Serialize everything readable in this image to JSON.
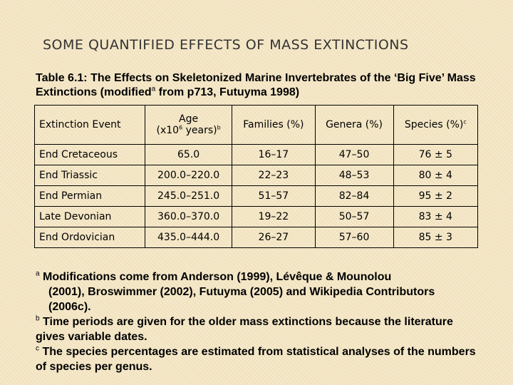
{
  "slide": {
    "title": "SOME QUANTIFIED EFFECTS OF MASS EXTINCTIONS"
  },
  "caption": {
    "part1": "Table 6.1: The Effects on Skeletonized Marine Invertebrates of the ‘Big Five’ Mass Extinctions (modified",
    "sup": "a",
    "part2": " from p713, Futuyma 1998)"
  },
  "table": {
    "headers": {
      "event": "Extinction Event",
      "age_line1": "Age",
      "age_line2_pre": "(x10",
      "age_line2_exp": "6",
      "age_line2_post": " years)",
      "age_sup": "b",
      "families": "Families (%)",
      "genera": "Genera (%)",
      "species": "Species (%)",
      "species_sup": "c"
    },
    "rows": [
      {
        "event": "End Cretaceous",
        "age": "65.0",
        "families": "16–17",
        "genera": "47–50",
        "species": "76 ± 5"
      },
      {
        "event": "End Triassic",
        "age": "200.0–220.0",
        "families": "22–23",
        "genera": "48–53",
        "species": "80 ± 4"
      },
      {
        "event": "End Permian",
        "age": "245.0–251.0",
        "families": "51–57",
        "genera": "82–84",
        "species": "95 ± 2"
      },
      {
        "event": "Late Devonian",
        "age": "360.0–370.0",
        "families": "19–22",
        "genera": "50–57",
        "species": "83 ± 4"
      },
      {
        "event": "End Ordovician",
        "age": "435.0–444.0",
        "families": "26–27",
        "genera": "57–60",
        "species": "85 ± 3"
      }
    ]
  },
  "notes": [
    {
      "marker": "a",
      "text": " Modifications come from Anderson (1999), Lévêque & Mounolou",
      "cont": "(2001), Broswimmer (2002), Futuyma (2005) and Wikipedia Contributors (2006c)."
    },
    {
      "marker": "b",
      "text": " Time periods are given for the older mass extinctions because the literature gives variable dates."
    },
    {
      "marker": "c",
      "text": " The species percentages are estimated from statistical analyses of the numbers of species per genus."
    }
  ]
}
